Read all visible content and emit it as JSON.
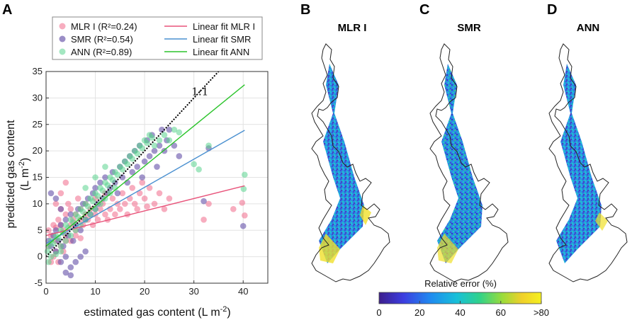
{
  "chart_data": [
    {
      "panel": "A",
      "type": "scatter",
      "xlabel": "estimated gas content (L m",
      "xlabel_sup": "-2",
      "xlabel_tail": ")",
      "ylabel_line1": "predicted gas content",
      "ylabel_line2": "(L m",
      "ylabel_sup": "-2",
      "ylabel_tail": ")",
      "xlim": [
        0,
        45
      ],
      "ylim": [
        -5,
        35
      ],
      "xticks": [
        0,
        10,
        20,
        30,
        40
      ],
      "yticks": [
        -5,
        0,
        5,
        10,
        15,
        20,
        25,
        30,
        35
      ],
      "grid": true,
      "legend_position": "top",
      "series": [
        {
          "name": "MLR I (R²=0.24)",
          "color": "#f06a8a",
          "fit_name": "Linear fit MLR I",
          "fit_color": "#e8537a",
          "fit": {
            "x0": 0,
            "y0": 4.0,
            "x1": 40.3,
            "y1": 13.4
          },
          "points": [
            [
              0.5,
              5
            ],
            [
              1,
              4
            ],
            [
              1.5,
              6
            ],
            [
              2,
              5.5
            ],
            [
              2,
              3
            ],
            [
              2.5,
              7
            ],
            [
              3,
              6
            ],
            [
              3,
              9
            ],
            [
              3.5,
              5
            ],
            [
              4,
              8
            ],
            [
              4,
              4
            ],
            [
              4.5,
              10
            ],
            [
              5,
              6
            ],
            [
              5,
              9
            ],
            [
              5.5,
              7
            ],
            [
              6,
              5
            ],
            [
              6,
              8
            ],
            [
              6.5,
              11
            ],
            [
              7,
              7
            ],
            [
              7,
              9
            ],
            [
              7.5,
              6
            ],
            [
              8,
              8
            ],
            [
              8,
              10
            ],
            [
              8.5,
              7
            ],
            [
              9,
              9
            ],
            [
              9.5,
              6
            ],
            [
              10,
              8
            ],
            [
              10,
              11
            ],
            [
              10.5,
              7
            ],
            [
              11,
              9
            ],
            [
              11.5,
              10
            ],
            [
              12,
              8
            ],
            [
              12,
              12
            ],
            [
              12.5,
              7
            ],
            [
              13,
              9
            ],
            [
              13.5,
              11
            ],
            [
              14,
              8
            ],
            [
              14.5,
              10
            ],
            [
              15,
              9
            ],
            [
              15.5,
              12
            ],
            [
              16,
              10
            ],
            [
              16.5,
              8
            ],
            [
              17,
              11
            ],
            [
              17.5,
              13
            ],
            [
              18,
              10
            ],
            [
              18.5,
              9
            ],
            [
              19,
              12
            ],
            [
              19.5,
              14
            ],
            [
              20,
              11
            ],
            [
              20.5,
              9.5
            ],
            [
              21,
              13
            ],
            [
              22,
              10
            ],
            [
              23,
              12
            ],
            [
              24,
              9
            ],
            [
              25,
              11
            ],
            [
              1,
              -1
            ],
            [
              2,
              1
            ],
            [
              3,
              2
            ],
            [
              4,
              3
            ],
            [
              1.5,
              0
            ],
            [
              2.5,
              -1
            ],
            [
              3.5,
              1
            ],
            [
              0.5,
              2
            ],
            [
              5,
              3
            ],
            [
              6,
              4
            ],
            [
              7,
              3.5
            ],
            [
              3,
              12
            ],
            [
              4,
              14
            ],
            [
              2,
              10
            ],
            [
              32,
              7
            ],
            [
              33,
              10
            ],
            [
              40.3,
              7.8
            ],
            [
              39.8,
              10.2
            ],
            [
              38,
              9
            ]
          ]
        },
        {
          "name": "SMR (R²=0.54)",
          "color": "#6450a8",
          "fit_name": "Linear fit SMR",
          "fit_color": "#4a90d0",
          "fit": {
            "x0": 0,
            "y0": 2.5,
            "x1": 40.3,
            "y1": 23.9
          },
          "points": [
            [
              0.5,
              3
            ],
            [
              1,
              2
            ],
            [
              1.5,
              4
            ],
            [
              2,
              1
            ],
            [
              2,
              5
            ],
            [
              2.5,
              3
            ],
            [
              3,
              -1
            ],
            [
              3,
              6
            ],
            [
              3.5,
              2
            ],
            [
              4,
              0
            ],
            [
              4,
              7
            ],
            [
              4.5,
              4
            ],
            [
              5,
              -2
            ],
            [
              5,
              8
            ],
            [
              5.5,
              3
            ],
            [
              6,
              6
            ],
            [
              6.5,
              9
            ],
            [
              7,
              5
            ],
            [
              7.5,
              10
            ],
            [
              8,
              7
            ],
            [
              8.5,
              11
            ],
            [
              9,
              8
            ],
            [
              9.5,
              12
            ],
            [
              10,
              9
            ],
            [
              10,
              13
            ],
            [
              10.5,
              10
            ],
            [
              11,
              14
            ],
            [
              11.5,
              11
            ],
            [
              12,
              15
            ],
            [
              12.5,
              12
            ],
            [
              13,
              13
            ],
            [
              13.5,
              16
            ],
            [
              14,
              14
            ],
            [
              14.5,
              12
            ],
            [
              15,
              17
            ],
            [
              15.5,
              15
            ],
            [
              16,
              18
            ],
            [
              16.5,
              14
            ],
            [
              17,
              19
            ],
            [
              17.5,
              16
            ],
            [
              18,
              20
            ],
            [
              18.5,
              17
            ],
            [
              19,
              21
            ],
            [
              19.5,
              15
            ],
            [
              20,
              18
            ],
            [
              20.5,
              22
            ],
            [
              21,
              19
            ],
            [
              21.5,
              23
            ],
            [
              22,
              20
            ],
            [
              22.5,
              17
            ],
            [
              23,
              21
            ],
            [
              23.5,
              24
            ],
            [
              24,
              20
            ],
            [
              24.5,
              22
            ],
            [
              25,
              24
            ],
            [
              26,
              21
            ],
            [
              27,
              19
            ],
            [
              1,
              12
            ],
            [
              2,
              11
            ],
            [
              3,
              9
            ],
            [
              4,
              -3
            ],
            [
              5,
              -3.5
            ],
            [
              6,
              -1
            ],
            [
              7,
              0
            ],
            [
              8,
              1
            ],
            [
              32,
              10.5
            ],
            [
              40,
              5.8
            ],
            [
              33,
              20.5
            ]
          ]
        },
        {
          "name": "ANN (R²=0.89)",
          "color": "#5ad48e",
          "fit_name": "Linear fit ANN",
          "fit_color": "#2bc42b",
          "fit": {
            "x0": 0,
            "y0": 2.0,
            "x1": 40.3,
            "y1": 32.5
          },
          "points": [
            [
              0.5,
              2
            ],
            [
              1,
              3
            ],
            [
              1.5,
              2.5
            ],
            [
              2,
              4
            ],
            [
              2.5,
              3.5
            ],
            [
              3,
              5
            ],
            [
              3.5,
              4.5
            ],
            [
              4,
              6
            ],
            [
              4.5,
              5.5
            ],
            [
              5,
              7
            ],
            [
              5.5,
              6.5
            ],
            [
              6,
              8
            ],
            [
              6.5,
              7.5
            ],
            [
              7,
              9
            ],
            [
              7.5,
              8.5
            ],
            [
              8,
              10
            ],
            [
              8.5,
              9.5
            ],
            [
              9,
              11
            ],
            [
              9.5,
              10.5
            ],
            [
              10,
              12
            ],
            [
              10.5,
              11.5
            ],
            [
              11,
              13
            ],
            [
              11.5,
              12.5
            ],
            [
              12,
              14
            ],
            [
              12.5,
              13.5
            ],
            [
              13,
              15
            ],
            [
              13.5,
              14.5
            ],
            [
              14,
              16
            ],
            [
              14.5,
              15.5
            ],
            [
              15,
              17
            ],
            [
              15.5,
              16.5
            ],
            [
              16,
              18
            ],
            [
              16.5,
              17.5
            ],
            [
              17,
              19
            ],
            [
              17.5,
              18.5
            ],
            [
              18,
              20
            ],
            [
              18.5,
              19.5
            ],
            [
              19,
              21
            ],
            [
              19.5,
              20.5
            ],
            [
              20,
              22
            ],
            [
              20.5,
              21.5
            ],
            [
              21,
              23
            ],
            [
              21.5,
              22.5
            ],
            [
              22,
              21
            ],
            [
              23,
              22
            ],
            [
              24,
              23
            ],
            [
              25,
              22
            ],
            [
              26,
              24
            ],
            [
              27,
              23.5
            ],
            [
              3,
              2
            ],
            [
              4,
              3
            ],
            [
              5,
              4
            ],
            [
              6,
              5
            ],
            [
              7,
              6
            ],
            [
              8,
              7
            ],
            [
              9,
              8
            ],
            [
              10,
              9
            ],
            [
              11,
              10
            ],
            [
              12,
              11
            ],
            [
              13,
              12
            ],
            [
              14,
              13
            ],
            [
              10,
              15
            ],
            [
              12,
              17
            ],
            [
              8,
              13
            ],
            [
              30,
              17.5
            ],
            [
              31,
              16.5
            ],
            [
              33,
              21
            ],
            [
              40.3,
              15.5
            ],
            [
              40.1,
              12.8
            ],
            [
              0.5,
              -1
            ],
            [
              1,
              0
            ],
            [
              2,
              0.5
            ],
            [
              3,
              1
            ],
            [
              0.3,
              1
            ]
          ]
        }
      ],
      "annotation": "1:1",
      "one_to_one": {
        "x0": 0,
        "y0": 0,
        "x1": 35,
        "y1": 35
      }
    }
  ],
  "panels": {
    "a_letter": "A",
    "b_letter": "B",
    "c_letter": "C",
    "d_letter": "D",
    "b_title": "MLR I",
    "c_title": "SMR",
    "d_title": "ANN"
  },
  "colorbar": {
    "title": "Relative error (%)",
    "ticks": [
      "0",
      "20",
      "40",
      "60",
      ">80"
    ],
    "colors": [
      "#3d1e8c",
      "#3c3de0",
      "#1f8cf0",
      "#18c0d8",
      "#30d28a",
      "#9adc3a",
      "#f0d02a",
      "#f5f01f"
    ]
  },
  "legend": {
    "mlr": "MLR I (R²=0.24)",
    "smr": "SMR (R²=0.54)",
    "ann": "ANN (R²=0.89)",
    "fit_mlr": "Linear fit MLR I",
    "fit_smr": "Linear fit SMR",
    "fit_ann": "Linear fit ANN"
  }
}
